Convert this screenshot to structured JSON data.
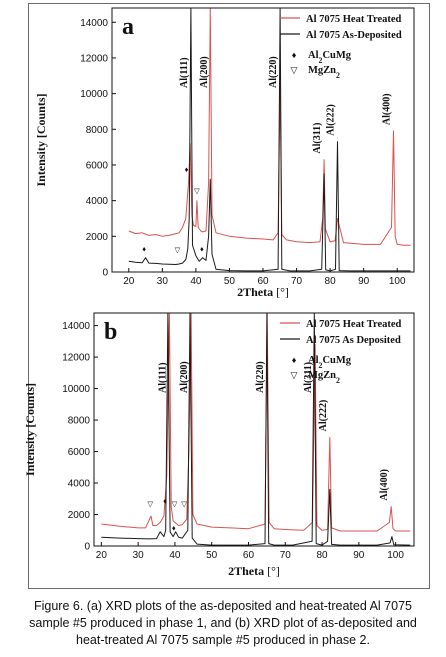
{
  "figure": {
    "caption_lines": [
      "Figure 6. (a) XRD plots of the as-deposited and heat-treated Al 7075",
      "sample #5 produced in phase 1, and (b) XRD plot of as-deposited and",
      "heat-treated Al 7075 sample #5 produced in phase 2."
    ]
  },
  "colors": {
    "heat_treated": "#d9534f",
    "as_deposited": "#1a1a1a",
    "axis": "#111111"
  },
  "chart_data": [
    {
      "type": "line",
      "panel_label": "a",
      "xlabel": "2Theta [°]",
      "ylabel": "Intensity [Counts]",
      "xlim": [
        15,
        105
      ],
      "ylim": [
        0,
        14800
      ],
      "xticks": [
        20,
        30,
        40,
        50,
        60,
        70,
        80,
        90,
        100
      ],
      "yticks": [
        0,
        2000,
        4000,
        6000,
        8000,
        10000,
        12000,
        14000
      ],
      "legend_position": "top-right",
      "series": [
        {
          "name": "Al 7075 Heat Treated",
          "color": "#d9534f",
          "points": [
            [
              20,
              2300
            ],
            [
              22,
              2150
            ],
            [
              24,
              2200
            ],
            [
              26,
              2050
            ],
            [
              28,
              2100
            ],
            [
              30,
              2000
            ],
            [
              32,
              2050
            ],
            [
              34,
              2150
            ],
            [
              35,
              2200
            ],
            [
              36,
              2500
            ],
            [
              37,
              3000
            ],
            [
              37.8,
              5000
            ],
            [
              38.3,
              7200
            ],
            [
              38.8,
              3200
            ],
            [
              39.3,
              2600
            ],
            [
              40,
              2550
            ],
            [
              40.3,
              4000
            ],
            [
              40.7,
              2500
            ],
            [
              41.5,
              2300
            ],
            [
              42,
              2250
            ],
            [
              43,
              2300
            ],
            [
              43.8,
              5000
            ],
            [
              44.3,
              14800
            ],
            [
              44.8,
              3200
            ],
            [
              46,
              2200
            ],
            [
              50,
              2000
            ],
            [
              55,
              1900
            ],
            [
              60,
              1850
            ],
            [
              63,
              1800
            ],
            [
              64.5,
              2200
            ],
            [
              65.1,
              10500
            ],
            [
              65.6,
              2100
            ],
            [
              67,
              1800
            ],
            [
              70,
              1700
            ],
            [
              74,
              1650
            ],
            [
              77,
              1700
            ],
            [
              77.8,
              3000
            ],
            [
              78.2,
              6300
            ],
            [
              78.6,
              2400
            ],
            [
              80,
              1700
            ],
            [
              81.5,
              1750
            ],
            [
              82.2,
              3000
            ],
            [
              84,
              1650
            ],
            [
              90,
              1550
            ],
            [
              95,
              1550
            ],
            [
              98.3,
              2500
            ],
            [
              98.9,
              7900
            ],
            [
              99.4,
              2000
            ],
            [
              100,
              1550
            ],
            [
              102,
              1500
            ],
            [
              104,
              1500
            ]
          ]
        },
        {
          "name": "Al 7075 As-Deposited",
          "color": "#1a1a1a",
          "points": [
            [
              20,
              600
            ],
            [
              22,
              550
            ],
            [
              24,
              520
            ],
            [
              25,
              800
            ],
            [
              26,
              500
            ],
            [
              28,
              480
            ],
            [
              30,
              450
            ],
            [
              32,
              430
            ],
            [
              34,
              420
            ],
            [
              35,
              450
            ],
            [
              36,
              500
            ],
            [
              37,
              700
            ],
            [
              37.6,
              1300
            ],
            [
              38,
              3000
            ],
            [
              38.5,
              14800
            ],
            [
              39,
              1500
            ],
            [
              40,
              900
            ],
            [
              41,
              600
            ],
            [
              42,
              800
            ],
            [
              43,
              650
            ],
            [
              43.8,
              2000
            ],
            [
              44.3,
              5200
            ],
            [
              44.8,
              1000
            ],
            [
              46,
              150
            ],
            [
              50,
              80
            ],
            [
              55,
              60
            ],
            [
              60,
              60
            ],
            [
              64.5,
              150
            ],
            [
              65.1,
              14800
            ],
            [
              65.6,
              150
            ],
            [
              68,
              60
            ],
            [
              74,
              60
            ],
            [
              77.5,
              150
            ],
            [
              78.2,
              5500
            ],
            [
              78.7,
              120
            ],
            [
              80,
              60
            ],
            [
              81.6,
              150
            ],
            [
              82.2,
              7300
            ],
            [
              82.7,
              80
            ],
            [
              86,
              60
            ],
            [
              95,
              60
            ],
            [
              104,
              60
            ]
          ]
        }
      ],
      "peak_labels": [
        {
          "text": "Al(111)",
          "x": 38.5
        },
        {
          "text": "Al(200)",
          "x": 44.5
        },
        {
          "text": "Al(220)",
          "x": 65.1
        },
        {
          "text": "Al(311)",
          "x": 78.2
        },
        {
          "text": "Al(222)",
          "x": 82.2
        },
        {
          "text": "Al(400)",
          "x": 98.9
        }
      ],
      "phase_legend": [
        {
          "symbol": "♦",
          "text": "Al2CuMg"
        },
        {
          "symbol": "▽",
          "text": "MgZn2"
        }
      ],
      "phase_markers": [
        {
          "symbol": "♦",
          "x": 24.6,
          "y": 1150
        },
        {
          "symbol": "♦",
          "x": 37.2,
          "y": 5600
        },
        {
          "symbol": "♦",
          "x": 41.8,
          "y": 1150
        },
        {
          "symbol": "▽",
          "x": 34.5,
          "y": 1100
        },
        {
          "symbol": "▽",
          "x": 40.3,
          "y": 4400
        }
      ]
    },
    {
      "type": "line",
      "panel_label": "b",
      "xlabel": "2Theta [°]",
      "ylabel": "Intensity [Counts]",
      "xlim": [
        18,
        105
      ],
      "ylim": [
        0,
        14800
      ],
      "xticks": [
        20,
        30,
        40,
        50,
        60,
        70,
        80,
        90,
        100
      ],
      "yticks": [
        0,
        2000,
        4000,
        6000,
        8000,
        10000,
        12000,
        14000
      ],
      "legend_position": "top-right",
      "series": [
        {
          "name": "Al 7075 Heat Treated",
          "color": "#d9534f",
          "points": [
            [
              20,
              1400
            ],
            [
              25,
              1250
            ],
            [
              30,
              1150
            ],
            [
              32,
              1150
            ],
            [
              33.5,
              1900
            ],
            [
              34,
              1300
            ],
            [
              35,
              1300
            ],
            [
              36,
              1500
            ],
            [
              37,
              1900
            ],
            [
              37.8,
              4500
            ],
            [
              38.5,
              14800
            ],
            [
              39,
              2500
            ],
            [
              39.5,
              1600
            ],
            [
              40,
              1500
            ],
            [
              41,
              1300
            ],
            [
              42,
              1350
            ],
            [
              43.2,
              1700
            ],
            [
              43.8,
              6000
            ],
            [
              44.4,
              14800
            ],
            [
              44.9,
              2000
            ],
            [
              46,
              1400
            ],
            [
              50,
              1200
            ],
            [
              55,
              1150
            ],
            [
              60,
              1100
            ],
            [
              64.5,
              1400
            ],
            [
              65.1,
              14800
            ],
            [
              65.6,
              1500
            ],
            [
              67,
              1100
            ],
            [
              70,
              1050
            ],
            [
              75,
              1000
            ],
            [
              77.4,
              1500
            ],
            [
              78.1,
              12800
            ],
            [
              78.6,
              1300
            ],
            [
              80,
              1000
            ],
            [
              81.5,
              1050
            ],
            [
              82.1,
              6900
            ],
            [
              82.6,
              1150
            ],
            [
              85,
              950
            ],
            [
              95,
              950
            ],
            [
              98.3,
              1500
            ],
            [
              98.8,
              2500
            ],
            [
              99.3,
              1100
            ],
            [
              100,
              950
            ],
            [
              104,
              950
            ]
          ]
        },
        {
          "name": "Al 7075 As Deposited",
          "color": "#1a1a1a",
          "points": [
            [
              20,
              550
            ],
            [
              25,
              500
            ],
            [
              30,
              470
            ],
            [
              33,
              450
            ],
            [
              35,
              470
            ],
            [
              36,
              900
            ],
            [
              37,
              600
            ],
            [
              37.5,
              1000
            ],
            [
              38.1,
              14800
            ],
            [
              38.7,
              900
            ],
            [
              39.5,
              600
            ],
            [
              40.2,
              900
            ],
            [
              41,
              550
            ],
            [
              42,
              500
            ],
            [
              43.5,
              1000
            ],
            [
              44.1,
              14800
            ],
            [
              44.7,
              500
            ],
            [
              46,
              120
            ],
            [
              50,
              60
            ],
            [
              55,
              60
            ],
            [
              60,
              60
            ],
            [
              64.5,
              150
            ],
            [
              65,
              14800
            ],
            [
              65.5,
              150
            ],
            [
              67,
              60
            ],
            [
              72,
              60
            ],
            [
              77.3,
              300
            ],
            [
              77.9,
              14800
            ],
            [
              78.4,
              150
            ],
            [
              80,
              60
            ],
            [
              81.5,
              300
            ],
            [
              82.1,
              3600
            ],
            [
              82.6,
              100
            ],
            [
              85,
              60
            ],
            [
              95,
              60
            ],
            [
              98.5,
              200
            ],
            [
              99,
              600
            ],
            [
              99.5,
              80
            ],
            [
              104,
              60
            ]
          ]
        }
      ],
      "peak_labels": [
        {
          "text": "Al(111)",
          "x": 38.5
        },
        {
          "text": "Al(200)",
          "x": 44.4
        },
        {
          "text": "Al(220)",
          "x": 65.1
        },
        {
          "text": "Al(311)",
          "x": 78.1
        },
        {
          "text": "Al(222)",
          "x": 82.1
        },
        {
          "text": "Al(400)",
          "x": 98.8
        }
      ],
      "phase_legend": [
        {
          "symbol": "♦",
          "text": "Al2CuMg"
        },
        {
          "symbol": "▽",
          "text": "MgZn2"
        }
      ],
      "phase_markers": [
        {
          "symbol": "▽",
          "x": 33.3,
          "y": 2500
        },
        {
          "symbol": "♦",
          "x": 37.3,
          "y": 2700
        },
        {
          "symbol": "▽",
          "x": 39.9,
          "y": 2500
        },
        {
          "symbol": "▽",
          "x": 42.5,
          "y": 2500
        },
        {
          "symbol": "♦",
          "x": 39.7,
          "y": 1000
        }
      ]
    }
  ]
}
